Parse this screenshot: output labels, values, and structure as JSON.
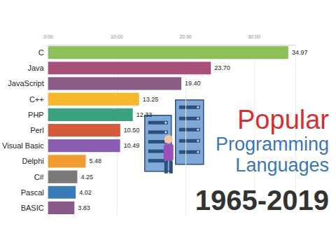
{
  "chart_data": {
    "type": "bar",
    "orientation": "horizontal",
    "title": "Popular Programming Languages",
    "subtitle": "1965-2019",
    "categories": [
      "C",
      "Java",
      "JavaScript",
      "C++",
      "PHP",
      "Perl",
      "Visual Basic",
      "Delphi",
      "C#",
      "Pascal",
      "BASIC"
    ],
    "values": [
      34.97,
      23.7,
      19.4,
      13.25,
      12.33,
      10.5,
      10.49,
      5.48,
      4.25,
      4.02,
      3.83
    ],
    "value_labels": [
      "34.97",
      "23.70",
      "19.40",
      "13.25",
      "12.33",
      "10.50",
      "10.49",
      "5.48",
      "4.25",
      "4.02",
      "3.83"
    ],
    "colors": [
      "#8fbf5a",
      "#a8507a",
      "#8a5c86",
      "#f5b82e",
      "#3aa17e",
      "#d65a3a",
      "#8a5cb0",
      "#f29b30",
      "#7a7a7a",
      "#3a7ab5",
      "#8c5a8a"
    ],
    "xlim": [
      0,
      36
    ],
    "xticks": [
      {
        "value": 0,
        "label": "0.00"
      },
      {
        "value": 10,
        "label": "10.00"
      },
      {
        "value": 20,
        "label": "20.00"
      },
      {
        "value": 30,
        "label": "30.00"
      }
    ],
    "grid": true,
    "data_labels": true
  }
}
